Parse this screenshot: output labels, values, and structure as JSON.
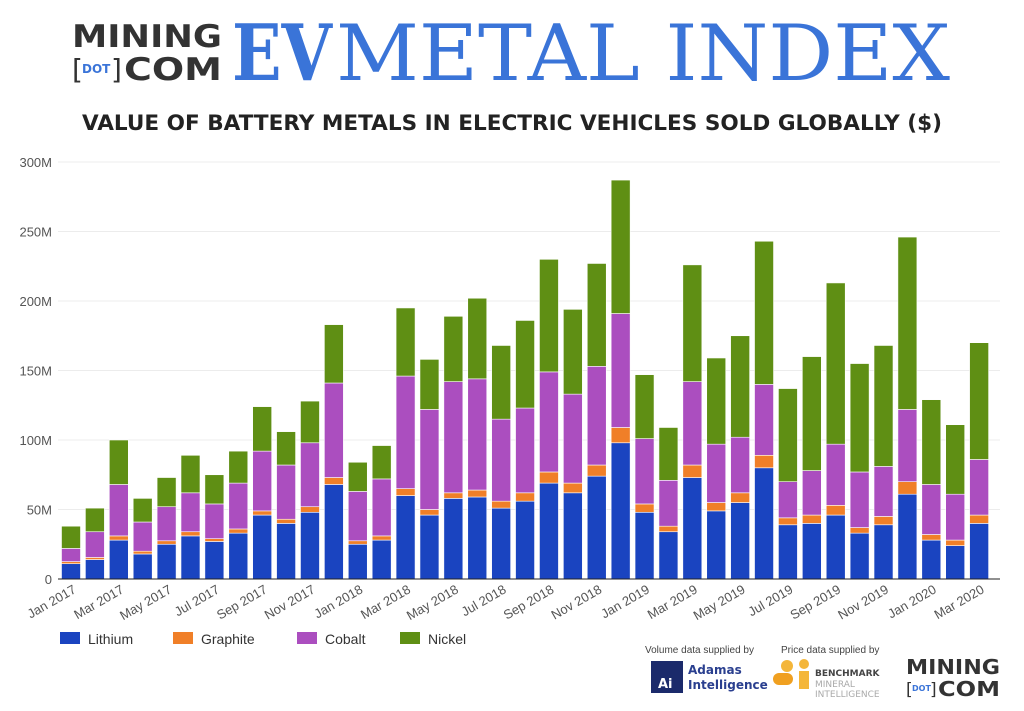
{
  "header": {
    "logo_top": "MINING",
    "logo_dot": "DOT",
    "logo_bottom": "COM",
    "ev": "EV",
    "index": "METAL INDEX"
  },
  "chart_data": {
    "type": "bar",
    "stacked": true,
    "title": "VALUE OF BATTERY METALS IN ELECTRIC VEHICLES SOLD GLOBALLY ($)",
    "xlabel": "",
    "ylabel": "",
    "ylim": [
      0,
      300000000
    ],
    "yticks": [
      0,
      50000000,
      100000000,
      150000000,
      200000000,
      250000000,
      300000000
    ],
    "ytick_labels": [
      "0",
      "50M",
      "100M",
      "150M",
      "200M",
      "250M",
      "300M"
    ],
    "grid": true,
    "legend": "bottom-left",
    "categories": [
      "Jan 2017",
      "Feb 2017",
      "Mar 2017",
      "Apr 2017",
      "May 2017",
      "Jun 2017",
      "Jul 2017",
      "Aug 2017",
      "Sep 2017",
      "Oct 2017",
      "Nov 2017",
      "Dec 2017",
      "Jan 2018",
      "Feb 2018",
      "Mar 2018",
      "Apr 2018",
      "May 2018",
      "Jun 2018",
      "Jul 2018",
      "Aug 2018",
      "Sep 2018",
      "Oct 2018",
      "Nov 2018",
      "Dec 2018",
      "Jan 2019",
      "Feb 2019",
      "Mar 2019",
      "Apr 2019",
      "May 2019",
      "Jun 2019",
      "Jul 2019",
      "Aug 2019",
      "Sep 2019",
      "Oct 2019",
      "Nov 2019",
      "Dec 2019",
      "Jan 2020",
      "Feb 2020",
      "Mar 2020"
    ],
    "xtick_labels": [
      "Jan 2017",
      "Mar 2017",
      "May 2017",
      "Jul 2017",
      "Sep 2017",
      "Nov 2017",
      "Jan 2018",
      "Mar 2018",
      "May 2018",
      "Jul 2018",
      "Sep 2018",
      "Nov 2018",
      "Jan 2019",
      "Mar 2019",
      "May 2019",
      "Jul 2019",
      "Sep 2019",
      "Nov 2019",
      "Jan 2020",
      "Mar 2020"
    ],
    "series": [
      {
        "name": "Lithium",
        "color": "#1a44c0",
        "values": [
          11,
          14,
          28,
          18,
          25,
          31,
          27,
          33,
          46,
          40,
          48,
          68,
          25,
          28,
          60,
          46,
          58,
          59,
          51,
          56,
          69,
          62,
          74,
          98,
          48,
          34,
          73,
          49,
          55,
          80,
          39,
          40,
          46,
          33,
          39,
          61,
          28,
          24,
          40
        ]
      },
      {
        "name": "Graphite",
        "color": "#f07f28",
        "values": [
          1.5,
          1.5,
          3,
          2,
          2.5,
          3,
          2,
          3,
          3,
          3,
          4,
          5,
          2.5,
          3,
          5,
          4,
          4,
          5,
          5,
          6,
          8,
          7,
          8,
          11,
          6,
          4,
          9,
          6,
          7,
          9,
          5,
          6,
          7,
          4,
          6,
          9,
          4,
          4,
          6
        ]
      },
      {
        "name": "Cobalt",
        "color": "#ab4ebf",
        "values": [
          9.5,
          18.5,
          37,
          21,
          24.5,
          28,
          25,
          33,
          43,
          39,
          46,
          68,
          35.5,
          41,
          81,
          72,
          80,
          80,
          59,
          61,
          72,
          64,
          71,
          82,
          47,
          33,
          60,
          42,
          40,
          51,
          26,
          32,
          44,
          40,
          36,
          52,
          36,
          33,
          40
        ]
      },
      {
        "name": "Nickel",
        "color": "#5f8f14",
        "values": [
          16,
          17,
          32,
          17,
          21,
          27,
          21,
          23,
          32,
          24,
          30,
          42,
          21,
          24,
          49,
          36,
          47,
          58,
          53,
          63,
          81,
          61,
          74,
          96,
          46,
          38,
          84,
          62,
          73,
          103,
          67,
          82,
          116,
          78,
          87,
          124,
          61,
          50,
          84
        ]
      }
    ],
    "value_unit": "million USD"
  },
  "footer": {
    "volume_label": "Volume data supplied by",
    "adamas_badge": "Ai",
    "adamas_name_1": "Adamas",
    "adamas_name_2": "Intelligence",
    "price_label": "Price data supplied by",
    "benchmark_1": "BENCHMARK",
    "benchmark_2": "MINERAL",
    "benchmark_3": "INTELLIGENCE",
    "logo_top": "MINING",
    "logo_dot": "DOT",
    "logo_bottom": "COM"
  }
}
